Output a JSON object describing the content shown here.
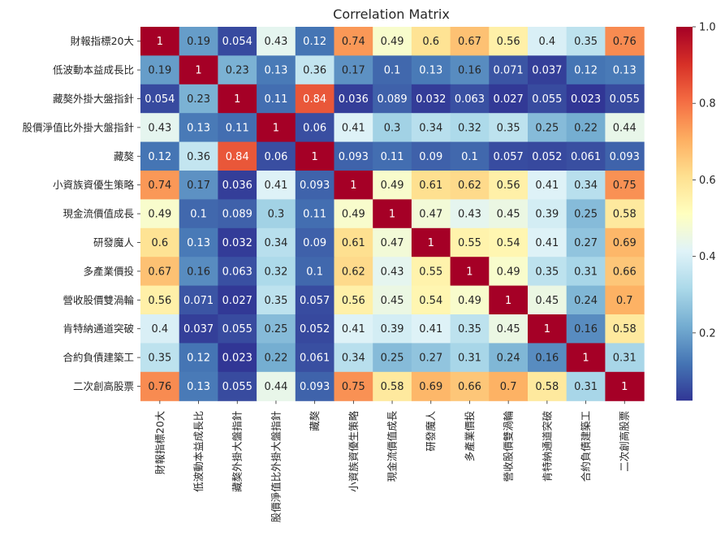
{
  "chart_data": {
    "type": "heatmap",
    "title": "Correlation Matrix",
    "xlabel": "",
    "ylabel": "",
    "colormap": "RdYlBu_r",
    "vmin": 0.023,
    "vmax": 1.0,
    "labels": [
      "財報指標20大",
      "低波動本益成長比",
      "藏獒外掛大盤指針",
      "股價淨值比外掛大盤指針",
      "藏獒",
      "小資族資優生策略",
      "現金流價值成長",
      "研發魔人",
      "多產業價投",
      "營收股價雙渦輪",
      "肯特納通道突破",
      "合約負債建築工",
      "二次創高股票"
    ],
    "matrix": [
      [
        1,
        0.19,
        0.054,
        0.43,
        0.12,
        0.74,
        0.49,
        0.6,
        0.67,
        0.56,
        0.4,
        0.35,
        0.76
      ],
      [
        0.19,
        1,
        0.23,
        0.13,
        0.36,
        0.17,
        0.1,
        0.13,
        0.16,
        0.071,
        0.037,
        0.12,
        0.13
      ],
      [
        0.054,
        0.23,
        1,
        0.11,
        0.84,
        0.036,
        0.089,
        0.032,
        0.063,
        0.027,
        0.055,
        0.023,
        0.055
      ],
      [
        0.43,
        0.13,
        0.11,
        1,
        0.06,
        0.41,
        0.3,
        0.34,
        0.32,
        0.35,
        0.25,
        0.22,
        0.44
      ],
      [
        0.12,
        0.36,
        0.84,
        0.06,
        1,
        0.093,
        0.11,
        0.09,
        0.1,
        0.057,
        0.052,
        0.061,
        0.093
      ],
      [
        0.74,
        0.17,
        0.036,
        0.41,
        0.093,
        1,
        0.49,
        0.61,
        0.62,
        0.56,
        0.41,
        0.34,
        0.75
      ],
      [
        0.49,
        0.1,
        0.089,
        0.3,
        0.11,
        0.49,
        1,
        0.47,
        0.43,
        0.45,
        0.39,
        0.25,
        0.58
      ],
      [
        0.6,
        0.13,
        0.032,
        0.34,
        0.09,
        0.61,
        0.47,
        1,
        0.55,
        0.54,
        0.41,
        0.27,
        0.69
      ],
      [
        0.67,
        0.16,
        0.063,
        0.32,
        0.1,
        0.62,
        0.43,
        0.55,
        1,
        0.49,
        0.35,
        0.31,
        0.66
      ],
      [
        0.56,
        0.071,
        0.027,
        0.35,
        0.057,
        0.56,
        0.45,
        0.54,
        0.49,
        1,
        0.45,
        0.24,
        0.7
      ],
      [
        0.4,
        0.037,
        0.055,
        0.25,
        0.052,
        0.41,
        0.39,
        0.41,
        0.35,
        0.45,
        1,
        0.16,
        0.58
      ],
      [
        0.35,
        0.12,
        0.023,
        0.22,
        0.061,
        0.34,
        0.25,
        0.27,
        0.31,
        0.24,
        0.16,
        1,
        0.31
      ],
      [
        0.76,
        0.13,
        0.055,
        0.44,
        0.093,
        0.75,
        0.58,
        0.69,
        0.66,
        0.7,
        0.58,
        0.31,
        1
      ]
    ],
    "colorbar": {
      "ticks": [
        0.2,
        0.4,
        0.6,
        0.8,
        1.0
      ],
      "tick_labels": [
        "0.2",
        "0.4",
        "0.6",
        "0.8",
        "1.0"
      ]
    }
  }
}
